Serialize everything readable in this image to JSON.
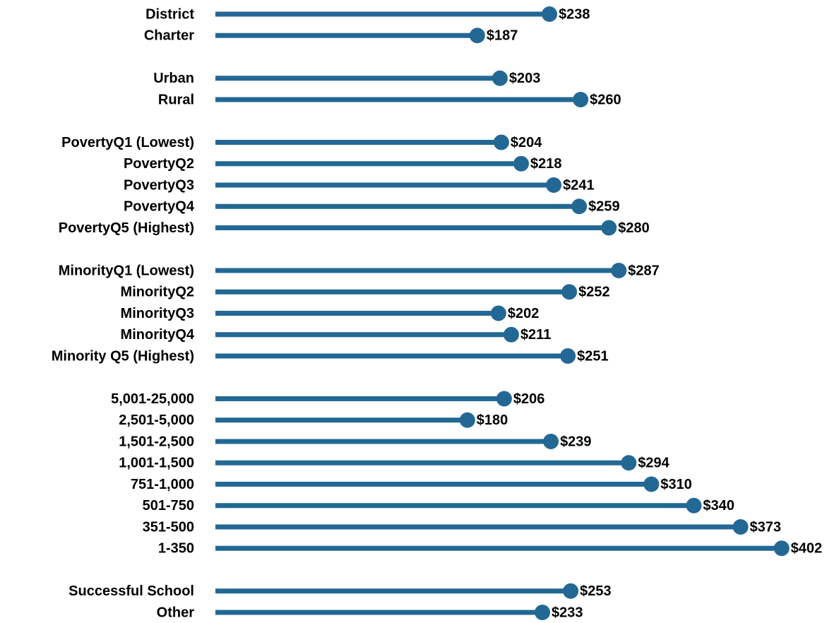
{
  "chart_data": {
    "type": "lollipop",
    "orientation": "horizontal",
    "color": "#236895",
    "categories": [
      "District",
      "Charter",
      null,
      "Urban",
      "Rural",
      null,
      "PovertyQ1 (Lowest)",
      "PovertyQ2",
      "PovertyQ3",
      "PovertyQ4",
      "PovertyQ5 (Highest)",
      null,
      "MinorityQ1 (Lowest)",
      "MinorityQ2",
      "MinorityQ3",
      "MinorityQ4",
      "Minority Q5 (Highest)",
      null,
      "5,001-25,000",
      "2,501-5,000",
      "1,501-2,500",
      "1,001-1,500",
      "751-1,000",
      "501-750",
      "351-500",
      "1-350",
      null,
      "Successful School",
      "Other"
    ],
    "values": [
      238,
      187,
      null,
      203,
      260,
      null,
      204,
      218,
      241,
      259,
      280,
      null,
      287,
      252,
      202,
      211,
      251,
      null,
      206,
      180,
      239,
      294,
      310,
      340,
      373,
      402,
      null,
      253,
      233
    ],
    "value_labels": [
      "$238",
      "$187",
      null,
      "$203",
      "$260",
      null,
      "$204",
      "$218",
      "$241",
      "$259",
      "$280",
      null,
      "$287",
      "$252",
      "$202",
      "$211",
      "$251",
      null,
      "$206",
      "$180",
      "$239",
      "$294",
      "$310",
      "$340",
      "$373",
      "$402",
      null,
      "$253",
      "$233"
    ]
  }
}
